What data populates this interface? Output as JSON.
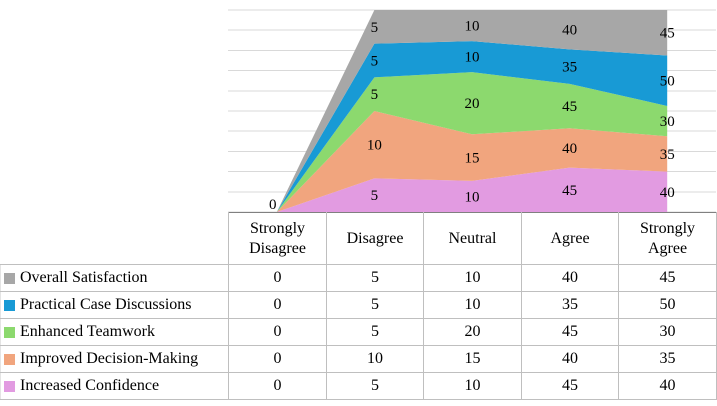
{
  "chart_data": {
    "type": "area",
    "variant": "100%-stacked-area-with-raw-value-labels",
    "title": "",
    "categories": [
      "Strongly Disagree",
      "Disagree",
      "Neutral",
      "Agree",
      "Strongly Agree"
    ],
    "series": [
      {
        "name": "Overall Satisfaction",
        "color": "#A7A7A7",
        "values": [
          0,
          5,
          10,
          40,
          45
        ]
      },
      {
        "name": "Practical Case Discussions",
        "color": "#189AD5",
        "values": [
          0,
          5,
          10,
          35,
          50
        ]
      },
      {
        "name": "Enhanced Teamwork",
        "color": "#8CD96E",
        "values": [
          0,
          5,
          20,
          45,
          30
        ]
      },
      {
        "name": "Improved Decision-Making",
        "color": "#F1A57E",
        "values": [
          0,
          10,
          15,
          40,
          35
        ]
      },
      {
        "name": "Increased Confidence",
        "color": "#E29BE1",
        "values": [
          0,
          5,
          10,
          45,
          40
        ]
      }
    ],
    "stack_order_bottom_to_top": [
      "Increased Confidence",
      "Improved Decision-Making",
      "Enhanced Teamwork",
      "Practical Case Discussions",
      "Overall Satisfaction"
    ],
    "zero_label": "0",
    "data_labels_visible": true,
    "ylim_percent": [
      0,
      100
    ],
    "gridlines": {
      "horizontal": true,
      "interval_percent": 10
    },
    "legend_position": "data-table-left-column"
  },
  "colors": {
    "gridline": "#D9D9D9",
    "table_border": "#BFBFBF",
    "axis_line": "#808080",
    "background": "#FFFFFF",
    "text": "#000000"
  }
}
